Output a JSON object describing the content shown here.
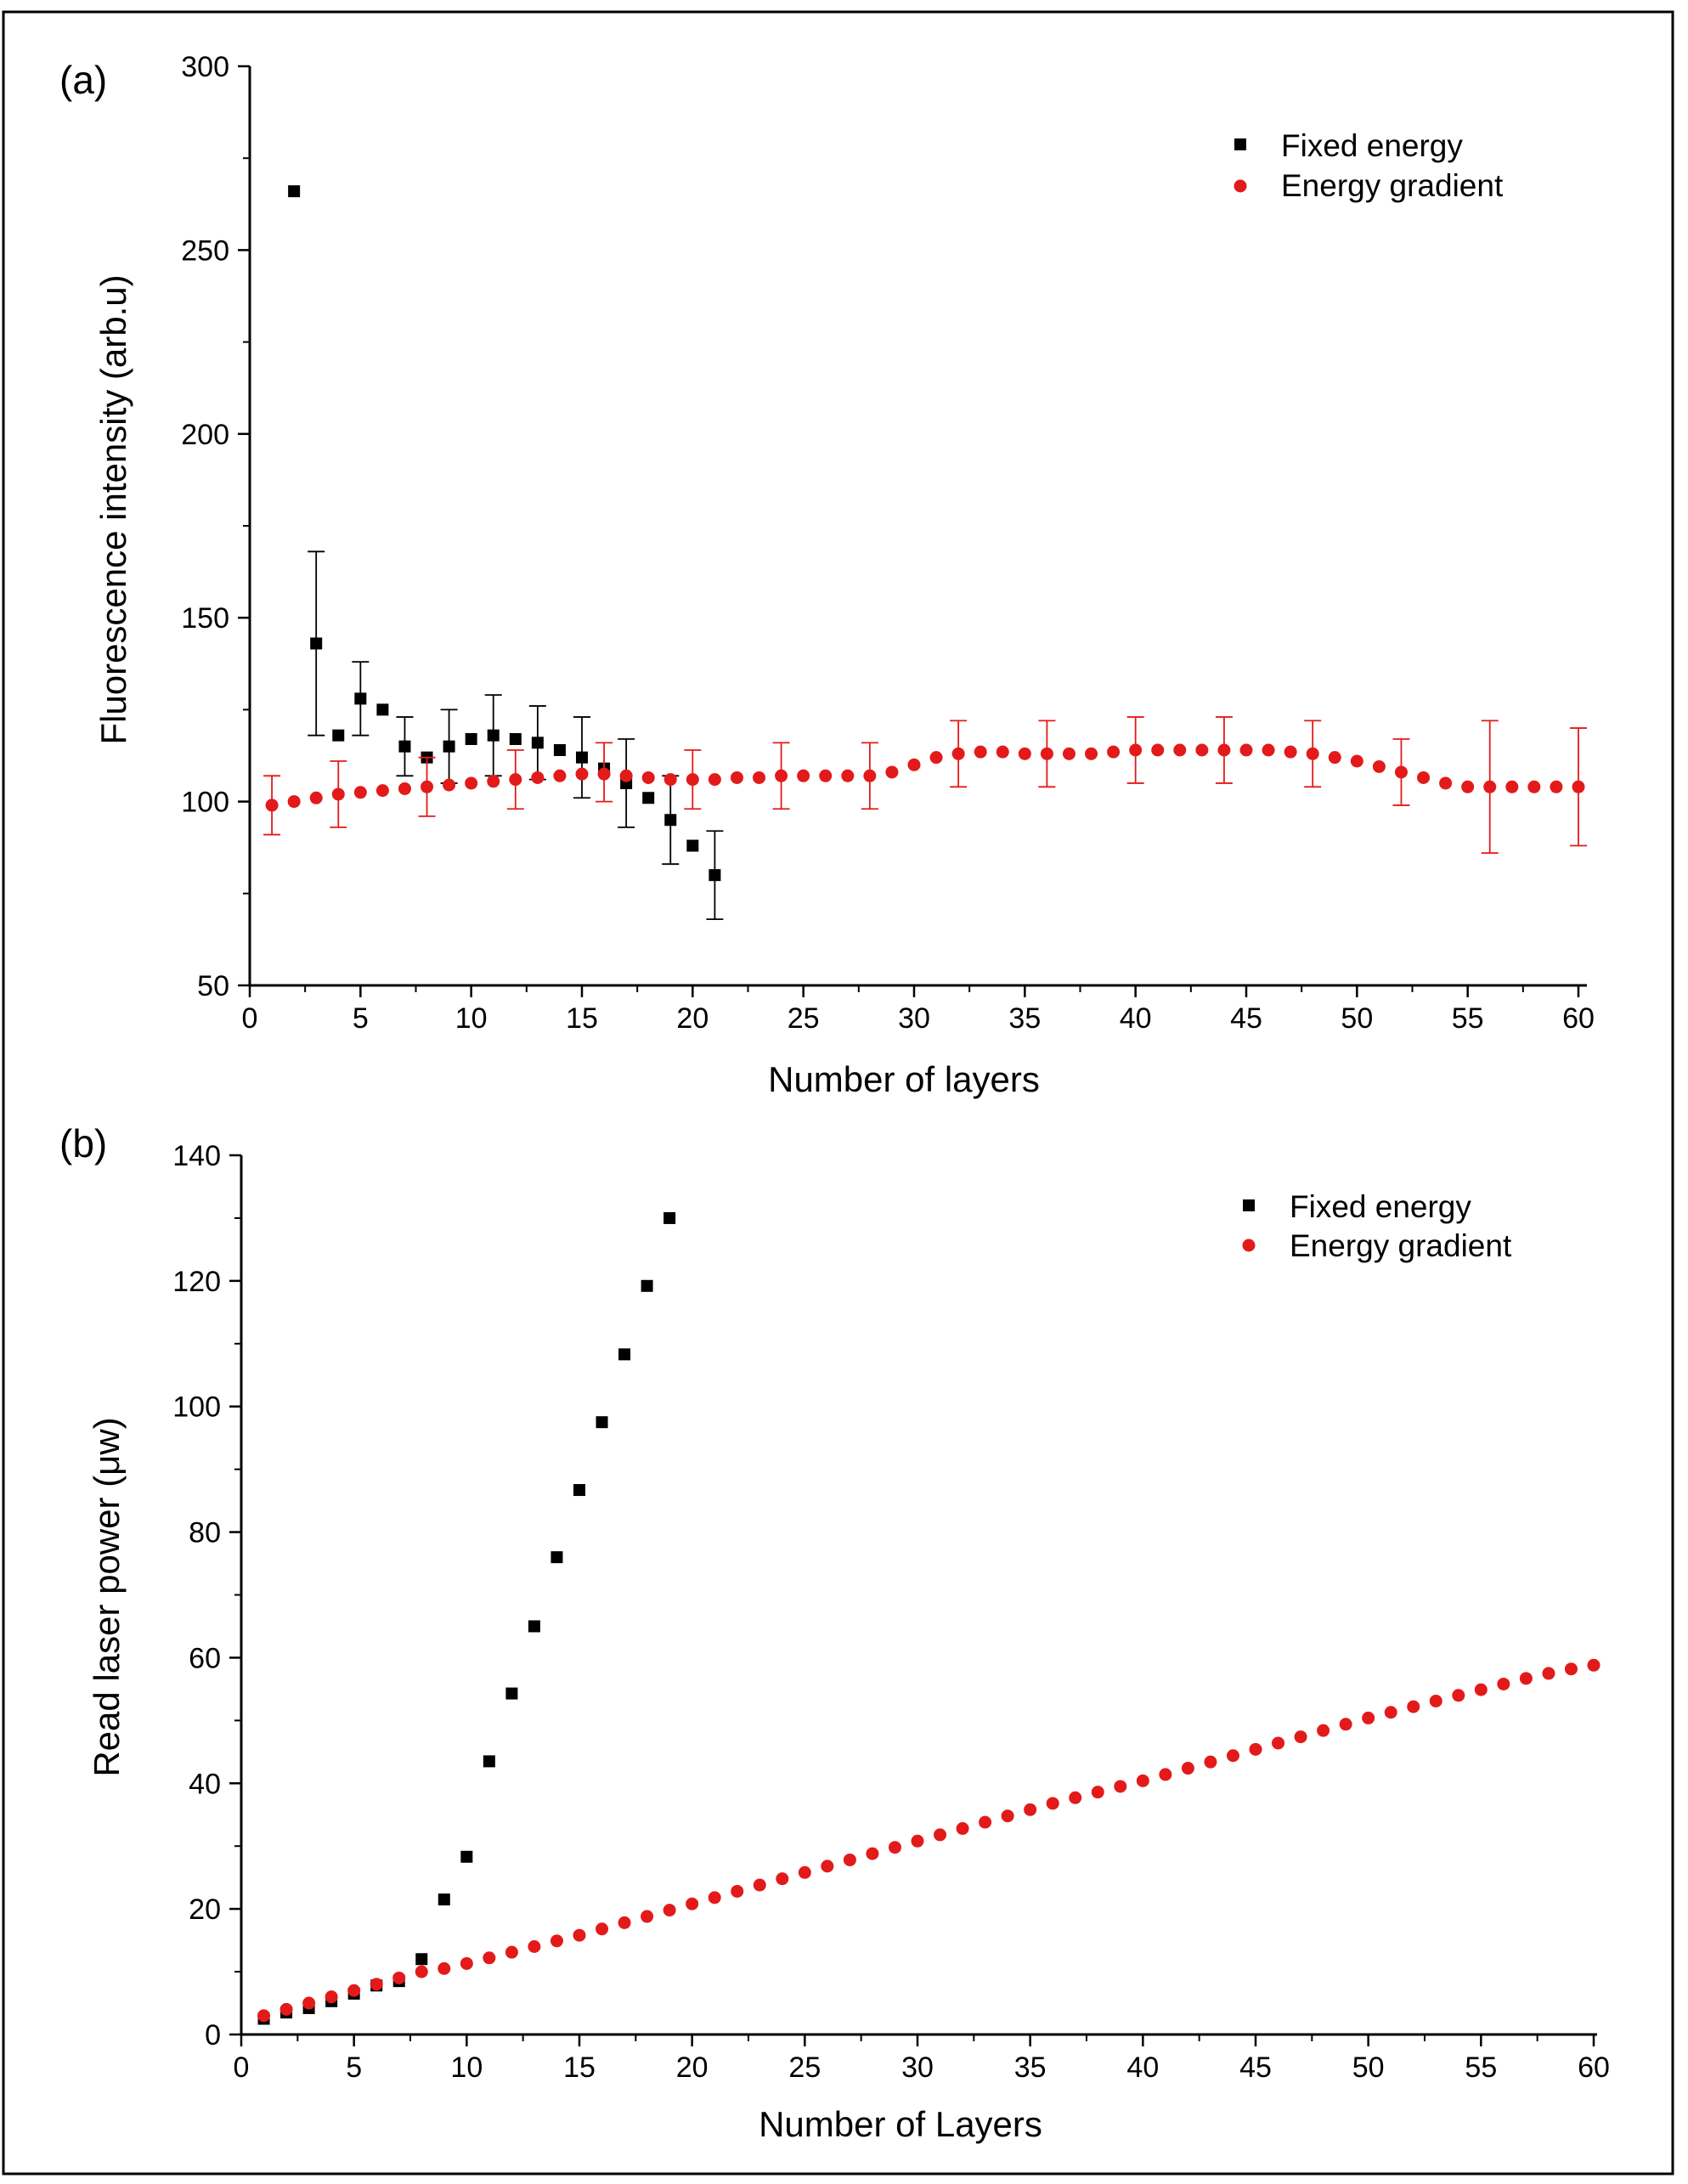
{
  "chart_data": [
    {
      "type": "scatter",
      "panel_label": "(a)",
      "xlabel": "Number of layers",
      "ylabel": "Fluorescence intensity (arb.u)",
      "xlim": [
        0,
        60
      ],
      "ylim": [
        50,
        300
      ],
      "xticks": [
        0,
        5,
        10,
        15,
        20,
        25,
        30,
        35,
        40,
        45,
        50,
        55,
        60
      ],
      "yticks": [
        50,
        100,
        150,
        200,
        250,
        300
      ],
      "legend_position": "top-right",
      "series": [
        {
          "name": "Fixed energy",
          "marker": "square",
          "color": "#000000",
          "x": [
            2,
            3,
            4,
            5,
            6,
            7,
            8,
            9,
            10,
            11,
            12,
            13,
            14,
            15,
            16,
            17,
            18,
            19,
            20,
            21
          ],
          "y": [
            266,
            143,
            118,
            128,
            125,
            115,
            112,
            115,
            117,
            118,
            117,
            116,
            114,
            112,
            109,
            105,
            101,
            95,
            88,
            80
          ],
          "error_bars": [
            {
              "x": 3,
              "low": 118,
              "high": 168
            },
            {
              "x": 5,
              "low": 118,
              "high": 138
            },
            {
              "x": 7,
              "low": 107,
              "high": 123
            },
            {
              "x": 9,
              "low": 105,
              "high": 125
            },
            {
              "x": 11,
              "low": 107,
              "high": 129
            },
            {
              "x": 13,
              "low": 106,
              "high": 126
            },
            {
              "x": 15,
              "low": 101,
              "high": 123
            },
            {
              "x": 17,
              "low": 93,
              "high": 117
            },
            {
              "x": 19,
              "low": 83,
              "high": 107
            },
            {
              "x": 21,
              "low": 68,
              "high": 92
            }
          ]
        },
        {
          "name": "Energy gradient",
          "marker": "circle",
          "color": "#e31a1a",
          "x": [
            1,
            2,
            3,
            4,
            5,
            6,
            7,
            8,
            9,
            10,
            11,
            12,
            13,
            14,
            15,
            16,
            17,
            18,
            19,
            20,
            21,
            22,
            23,
            24,
            25,
            26,
            27,
            28,
            29,
            30,
            31,
            32,
            33,
            34,
            35,
            36,
            37,
            38,
            39,
            40,
            41,
            42,
            43,
            44,
            45,
            46,
            47,
            48,
            49,
            50,
            51,
            52,
            53,
            54,
            55,
            56,
            57,
            58,
            59,
            60
          ],
          "y": [
            99,
            100,
            101,
            102,
            102.5,
            103,
            103.5,
            104,
            104.5,
            105,
            105.5,
            106,
            106.5,
            107,
            107.5,
            107.5,
            107,
            106.5,
            106,
            106,
            106,
            106.5,
            106.5,
            107,
            107,
            107,
            107,
            107,
            108,
            110,
            112,
            113,
            113.5,
            113.5,
            113,
            113,
            113,
            113,
            113.5,
            114,
            114,
            114,
            114,
            114,
            114,
            114,
            113.5,
            113,
            112,
            111,
            109.5,
            108,
            106.5,
            105,
            104,
            104,
            104,
            104,
            104,
            104
          ],
          "error_bars": [
            {
              "x": 1,
              "low": 91,
              "high": 107
            },
            {
              "x": 4,
              "low": 93,
              "high": 111
            },
            {
              "x": 8,
              "low": 96,
              "high": 112
            },
            {
              "x": 12,
              "low": 98,
              "high": 114
            },
            {
              "x": 16,
              "low": 100,
              "high": 116
            },
            {
              "x": 20,
              "low": 98,
              "high": 114
            },
            {
              "x": 24,
              "low": 98,
              "high": 116
            },
            {
              "x": 28,
              "low": 98,
              "high": 116
            },
            {
              "x": 32,
              "low": 104,
              "high": 122
            },
            {
              "x": 36,
              "low": 104,
              "high": 122
            },
            {
              "x": 40,
              "low": 105,
              "high": 123
            },
            {
              "x": 44,
              "low": 105,
              "high": 123
            },
            {
              "x": 48,
              "low": 104,
              "high": 122
            },
            {
              "x": 52,
              "low": 99,
              "high": 117
            },
            {
              "x": 56,
              "low": 86,
              "high": 122
            },
            {
              "x": 60,
              "low": 88,
              "high": 120
            }
          ]
        }
      ]
    },
    {
      "type": "scatter",
      "panel_label": "(b)",
      "xlabel": "Number of Layers",
      "ylabel": "Read laser power (μw)",
      "xlim": [
        0,
        60
      ],
      "ylim": [
        0,
        140
      ],
      "xticks": [
        0,
        5,
        10,
        15,
        20,
        25,
        30,
        35,
        40,
        45,
        50,
        55,
        60
      ],
      "yticks": [
        0,
        20,
        40,
        60,
        80,
        100,
        120,
        140
      ],
      "legend_position": "top-right",
      "series": [
        {
          "name": "Fixed energy",
          "marker": "square",
          "color": "#000000",
          "x": [
            1,
            2,
            3,
            4,
            5,
            6,
            7,
            8,
            9,
            10,
            11,
            12,
            13,
            14,
            15,
            16,
            17,
            18,
            19
          ],
          "y": [
            2.5,
            3.5,
            4.2,
            5.3,
            6.5,
            7.8,
            8.5,
            12,
            21.5,
            28.3,
            43.5,
            54.3,
            65,
            76,
            86.7,
            97.5,
            108.3,
            119.2,
            130
          ]
        },
        {
          "name": "Energy gradient",
          "marker": "circle",
          "color": "#e31a1a",
          "x": [
            1,
            2,
            3,
            4,
            5,
            6,
            7,
            8,
            9,
            10,
            11,
            12,
            13,
            14,
            15,
            16,
            17,
            18,
            19,
            20,
            21,
            22,
            23,
            24,
            25,
            26,
            27,
            28,
            29,
            30,
            31,
            32,
            33,
            34,
            35,
            36,
            37,
            38,
            39,
            40,
            41,
            42,
            43,
            44,
            45,
            46,
            47,
            48,
            49,
            50,
            51,
            52,
            53,
            54,
            55,
            56,
            57,
            58,
            59,
            60
          ],
          "y": [
            3,
            4,
            5,
            6,
            7,
            8,
            9,
            10,
            10.5,
            11.3,
            12.2,
            13.1,
            14,
            14.9,
            15.8,
            16.8,
            17.8,
            18.8,
            19.8,
            20.8,
            21.8,
            22.8,
            23.8,
            24.8,
            25.8,
            26.8,
            27.8,
            28.8,
            29.8,
            30.8,
            31.8,
            32.8,
            33.8,
            34.8,
            35.8,
            36.8,
            37.7,
            38.6,
            39.5,
            40.4,
            41.4,
            42.4,
            43.4,
            44.4,
            45.4,
            46.4,
            47.4,
            48.4,
            49.4,
            50.4,
            51.3,
            52.2,
            53.1,
            54,
            54.9,
            55.8,
            56.7,
            57.5,
            58.2,
            58.8
          ]
        }
      ]
    }
  ]
}
